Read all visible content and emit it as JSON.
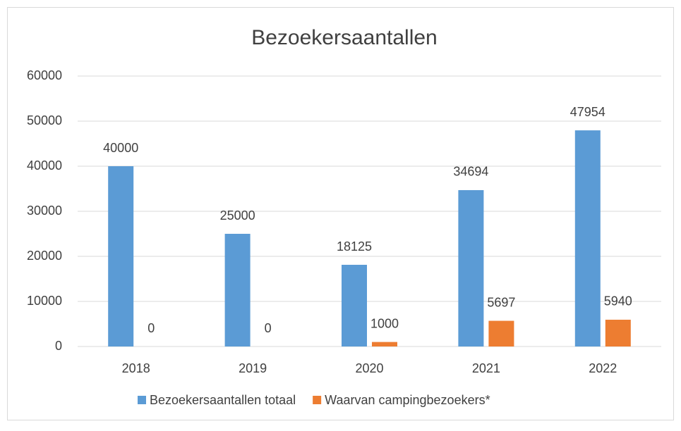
{
  "chart_data": {
    "type": "bar",
    "title": "Bezoekersaantallen",
    "categories": [
      "2018",
      "2019",
      "2020",
      "2021",
      "2022"
    ],
    "series": [
      {
        "name": "Bezoekersaantallen totaal",
        "color": "#5b9bd5",
        "values": [
          40000,
          25000,
          18125,
          34694,
          47954
        ]
      },
      {
        "name": "Waarvan campingbezoekers*",
        "color": "#ed7d31",
        "values": [
          0,
          0,
          1000,
          5697,
          5940
        ]
      }
    ],
    "ylim": [
      0,
      60000
    ],
    "yticks": [
      0,
      10000,
      20000,
      30000,
      40000,
      50000,
      60000
    ],
    "grid": true,
    "legend": "bottom"
  }
}
